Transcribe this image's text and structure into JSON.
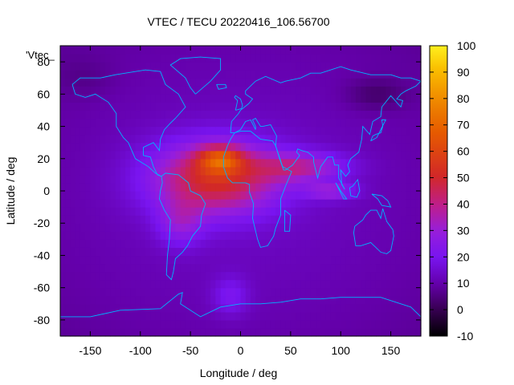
{
  "chart_data": {
    "type": "heatmap",
    "title": "VTEC / TECU 20220416_106.56700",
    "xlabel": "Longitude / deg",
    "ylabel": "Latitude / deg",
    "xlim": [
      -180,
      180
    ],
    "ylim": [
      -90,
      90
    ],
    "x_ticks": [
      "-150",
      "-100",
      "-50",
      "0",
      "50",
      "100",
      "150"
    ],
    "y_ticks": [
      "80",
      "60",
      "40",
      "20",
      "0",
      "-20",
      "-40",
      "-60",
      "-80"
    ],
    "x_tick_values": [
      -150,
      -100,
      -50,
      0,
      50,
      100,
      150
    ],
    "y_tick_values": [
      80,
      60,
      40,
      20,
      0,
      -20,
      -40,
      -60,
      -80
    ],
    "colorbar": {
      "range": [
        -10,
        100
      ],
      "ticks": [
        "100",
        "90",
        "80",
        "70",
        "60",
        "50",
        "40",
        "30",
        "20",
        "10",
        "0",
        "-10"
      ],
      "tick_values": [
        100,
        90,
        80,
        70,
        60,
        50,
        40,
        30,
        20,
        10,
        0,
        -10
      ]
    },
    "legend_entry": "'Vtec_",
    "grid": false,
    "coastline_color": "#00b4ff",
    "components": [
      {
        "lon": 0,
        "lat": 0,
        "slon": 360,
        "slat": 180,
        "amp": 13
      },
      {
        "lon": -25,
        "lat": 8,
        "slon": 62,
        "slat": 22,
        "amp": 40
      },
      {
        "lon": -20,
        "lat": 20,
        "slon": 22,
        "slat": 8,
        "amp": 30
      },
      {
        "lon": 60,
        "lat": 15,
        "slon": 45,
        "slat": 9,
        "amp": 22
      },
      {
        "lon": 90,
        "lat": 0,
        "slon": 25,
        "slat": 5,
        "amp": 18
      },
      {
        "lon": -60,
        "lat": -20,
        "slon": 22,
        "slat": 14,
        "amp": 14
      },
      {
        "lon": -10,
        "lat": -65,
        "slon": 18,
        "slat": 12,
        "amp": 10
      },
      {
        "lon": 135,
        "lat": 60,
        "slon": 30,
        "slat": 10,
        "amp": -7
      },
      {
        "lon": -155,
        "lat": 70,
        "slon": 30,
        "slat": 12,
        "amp": -3
      }
    ],
    "coastlines": [
      [
        [
          -168,
          66
        ],
        [
          -160,
          70
        ],
        [
          -140,
          70
        ],
        [
          -125,
          72
        ],
        [
          -95,
          75
        ],
        [
          -80,
          74
        ],
        [
          -75,
          66
        ],
        [
          -62,
          60
        ],
        [
          -55,
          52
        ],
        [
          -65,
          45
        ],
        [
          -70,
          42
        ],
        [
          -76,
          38
        ],
        [
          -80,
          32
        ],
        [
          -81,
          25
        ],
        [
          -87,
          30
        ],
        [
          -97,
          27
        ],
        [
          -97,
          22
        ],
        [
          -90,
          21
        ],
        [
          -87,
          15
        ],
        [
          -83,
          10
        ],
        [
          -79,
          9
        ],
        [
          -85,
          11
        ],
        [
          -92,
          15
        ],
        [
          -105,
          20
        ],
        [
          -112,
          30
        ],
        [
          -117,
          33
        ],
        [
          -124,
          40
        ],
        [
          -124,
          48
        ],
        [
          -132,
          55
        ],
        [
          -145,
          60
        ],
        [
          -155,
          58
        ],
        [
          -165,
          60
        ],
        [
          -168,
          66
        ]
      ],
      [
        [
          -79,
          9
        ],
        [
          -75,
          11
        ],
        [
          -62,
          10
        ],
        [
          -52,
          5
        ],
        [
          -50,
          0
        ],
        [
          -40,
          -3
        ],
        [
          -35,
          -8
        ],
        [
          -39,
          -15
        ],
        [
          -40,
          -22
        ],
        [
          -48,
          -28
        ],
        [
          -53,
          -34
        ],
        [
          -58,
          -38
        ],
        [
          -65,
          -42
        ],
        [
          -67,
          -50
        ],
        [
          -69,
          -55
        ],
        [
          -74,
          -52
        ],
        [
          -73,
          -40
        ],
        [
          -71,
          -30
        ],
        [
          -70,
          -18
        ],
        [
          -76,
          -12
        ],
        [
          -81,
          -5
        ],
        [
          -80,
          0
        ],
        [
          -78,
          5
        ],
        [
          -79,
          9
        ]
      ],
      [
        [
          -45,
          60
        ],
        [
          -30,
          68
        ],
        [
          -20,
          75
        ],
        [
          -20,
          82
        ],
        [
          -40,
          83
        ],
        [
          -60,
          82
        ],
        [
          -70,
          78
        ],
        [
          -55,
          70
        ],
        [
          -50,
          64
        ],
        [
          -45,
          60
        ]
      ],
      [
        [
          -17,
          15
        ],
        [
          -17,
          21
        ],
        [
          -13,
          28
        ],
        [
          -10,
          32
        ],
        [
          -6,
          36
        ],
        [
          0,
          37
        ],
        [
          10,
          37
        ],
        [
          20,
          32
        ],
        [
          32,
          31
        ],
        [
          35,
          28
        ],
        [
          42,
          15
        ],
        [
          51,
          12
        ],
        [
          45,
          3
        ],
        [
          40,
          -5
        ],
        [
          40,
          -15
        ],
        [
          35,
          -23
        ],
        [
          33,
          -28
        ],
        [
          27,
          -34
        ],
        [
          20,
          -35
        ],
        [
          17,
          -30
        ],
        [
          12,
          -17
        ],
        [
          13,
          -8
        ],
        [
          9,
          -1
        ],
        [
          9,
          4
        ],
        [
          5,
          5
        ],
        [
          -8,
          5
        ],
        [
          -13,
          8
        ],
        [
          -17,
          15
        ]
      ],
      [
        [
          -10,
          36
        ],
        [
          -9,
          43
        ],
        [
          -2,
          48
        ],
        [
          0,
          50
        ],
        [
          8,
          54
        ],
        [
          12,
          57
        ],
        [
          5,
          60
        ],
        [
          5,
          62
        ],
        [
          15,
          68
        ],
        [
          25,
          71
        ],
        [
          40,
          67
        ],
        [
          45,
          68
        ],
        [
          60,
          70
        ],
        [
          70,
          73
        ],
        [
          80,
          73
        ],
        [
          100,
          77
        ],
        [
          110,
          75
        ],
        [
          130,
          72
        ],
        [
          150,
          72
        ],
        [
          160,
          70
        ],
        [
          170,
          70
        ],
        [
          180,
          68
        ],
        [
          175,
          65
        ],
        [
          165,
          62
        ],
        [
          160,
          60
        ],
        [
          156,
          57
        ],
        [
          162,
          56
        ],
        [
          160,
          52
        ],
        [
          150,
          59
        ],
        [
          141,
          52
        ],
        [
          140,
          46
        ],
        [
          132,
          43
        ],
        [
          129,
          35
        ],
        [
          122,
          40
        ],
        [
          121,
          32
        ],
        [
          118,
          24
        ],
        [
          110,
          20
        ],
        [
          107,
          16
        ],
        [
          109,
          12
        ],
        [
          105,
          9
        ],
        [
          100,
          13
        ],
        [
          101,
          4
        ],
        [
          104,
          1
        ],
        [
          98,
          8
        ],
        [
          98,
          16
        ],
        [
          94,
          16
        ],
        [
          92,
          21
        ],
        [
          87,
          21
        ],
        [
          80,
          15
        ],
        [
          77,
          8
        ],
        [
          73,
          18
        ],
        [
          73,
          21
        ],
        [
          67,
          24
        ],
        [
          61,
          25
        ],
        [
          57,
          26
        ],
        [
          56,
          24
        ],
        [
          59,
          22
        ],
        [
          52,
          16
        ],
        [
          45,
          13
        ],
        [
          43,
          13
        ],
        [
          39,
          20
        ],
        [
          35,
          28
        ],
        [
          36,
          34
        ],
        [
          30,
          41
        ],
        [
          22,
          40
        ],
        [
          20,
          40
        ],
        [
          15,
          45
        ],
        [
          12,
          44
        ],
        [
          15,
          40
        ],
        [
          15,
          38
        ],
        [
          10,
          44
        ],
        [
          5,
          43
        ],
        [
          0,
          38
        ],
        [
          -6,
          36
        ],
        [
          -10,
          36
        ]
      ],
      [
        [
          114,
          -22
        ],
        [
          113,
          -26
        ],
        [
          115,
          -34
        ],
        [
          120,
          -34
        ],
        [
          130,
          -32
        ],
        [
          135,
          -35
        ],
        [
          140,
          -38
        ],
        [
          146,
          -39
        ],
        [
          150,
          -37
        ],
        [
          153,
          -28
        ],
        [
          152,
          -24
        ],
        [
          146,
          -19
        ],
        [
          142,
          -11
        ],
        [
          140,
          -17
        ],
        [
          136,
          -12
        ],
        [
          130,
          -12
        ],
        [
          125,
          -15
        ],
        [
          122,
          -18
        ],
        [
          114,
          -22
        ]
      ],
      [
        [
          -180,
          -78
        ],
        [
          -150,
          -78
        ],
        [
          -120,
          -74
        ],
        [
          -80,
          -73
        ],
        [
          -62,
          -64
        ],
        [
          -58,
          -63
        ],
        [
          -60,
          -70
        ],
        [
          -40,
          -78
        ],
        [
          -20,
          -72
        ],
        [
          0,
          -70
        ],
        [
          20,
          -70
        ],
        [
          40,
          -69
        ],
        [
          60,
          -67
        ],
        [
          80,
          -67
        ],
        [
          100,
          -66
        ],
        [
          120,
          -66
        ],
        [
          140,
          -66
        ],
        [
          160,
          -70
        ],
        [
          170,
          -72
        ],
        [
          180,
          -78
        ]
      ],
      [
        [
          -5,
          50
        ],
        [
          -3,
          56
        ],
        [
          -6,
          58
        ],
        [
          -5,
          59
        ],
        [
          0,
          57
        ],
        [
          2,
          53
        ],
        [
          1,
          51
        ],
        [
          -5,
          50
        ]
      ],
      [
        [
          130,
          31
        ],
        [
          132,
          34
        ],
        [
          135,
          35
        ],
        [
          140,
          36
        ],
        [
          142,
          40
        ],
        [
          141,
          44
        ],
        [
          145,
          44
        ],
        [
          140,
          38
        ],
        [
          136,
          33
        ],
        [
          130,
          31
        ]
      ],
      [
        [
          95,
          5
        ],
        [
          100,
          0
        ],
        [
          106,
          -5
        ],
        [
          103,
          -5
        ],
        [
          99,
          0
        ],
        [
          95,
          5
        ]
      ],
      [
        [
          109,
          2
        ],
        [
          112,
          3
        ],
        [
          117,
          7
        ],
        [
          119,
          0
        ],
        [
          116,
          -4
        ],
        [
          110,
          -3
        ],
        [
          109,
          2
        ]
      ],
      [
        [
          44,
          -12
        ],
        [
          50,
          -15
        ],
        [
          49,
          -25
        ],
        [
          44,
          -25
        ],
        [
          44,
          -12
        ]
      ],
      [
        [
          131,
          -2
        ],
        [
          141,
          -3
        ],
        [
          147,
          -6
        ],
        [
          150,
          -10
        ],
        [
          141,
          -9
        ],
        [
          137,
          -5
        ],
        [
          131,
          -2
        ]
      ],
      [
        [
          -24,
          66
        ],
        [
          -15,
          66
        ],
        [
          -14,
          64
        ],
        [
          -22,
          63
        ],
        [
          -24,
          66
        ]
      ]
    ]
  }
}
